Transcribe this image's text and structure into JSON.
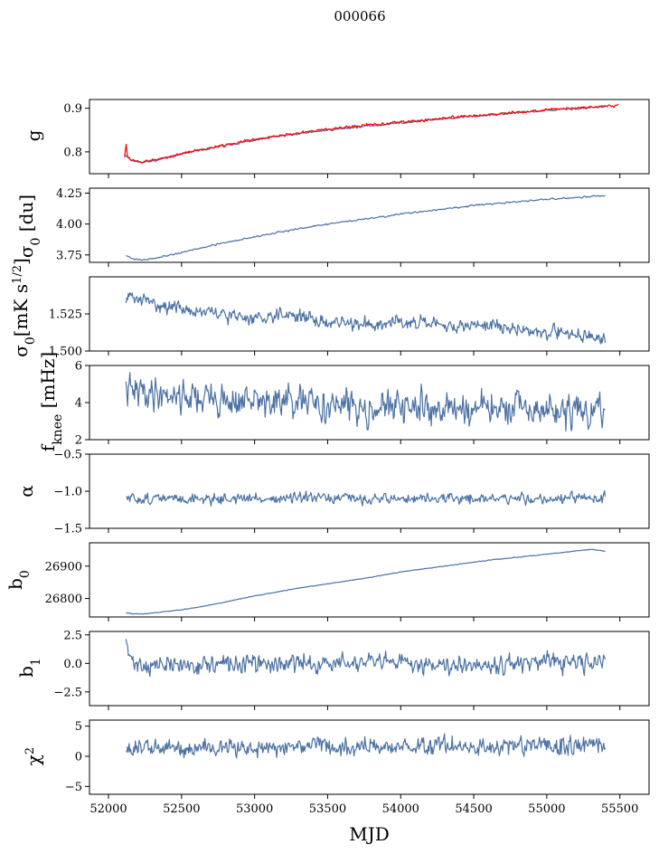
{
  "figure": {
    "title": "000066"
  },
  "colors": {
    "series": "#4c72a4",
    "gain_overlay": "#ff0000",
    "axes": "#000000"
  },
  "chart_data": [
    {
      "type": "line",
      "ylabel": "g",
      "ylim": [
        0.75,
        0.92
      ],
      "yticks": [
        0.8,
        0.9
      ],
      "ytick_labels": [
        "0.8",
        "0.9"
      ],
      "xlim": [
        51870,
        55700
      ],
      "series": [
        {
          "color": "#4c72a4",
          "noise": 0.0015,
          "seed": 11,
          "x": [
            52110,
            52160,
            52230,
            52300,
            52500,
            52800,
            53100,
            53500,
            54000,
            54500,
            55000,
            55400
          ],
          "y": [
            0.795,
            0.78,
            0.777,
            0.779,
            0.795,
            0.815,
            0.833,
            0.85,
            0.867,
            0.882,
            0.895,
            0.904
          ]
        },
        {
          "color": "#ff0000",
          "noise": 0.002,
          "seed": 12,
          "x": [
            52110,
            52120,
            52130,
            52160,
            52230,
            52300,
            52500,
            52800,
            53100,
            53500,
            54000,
            54500,
            55000,
            55400,
            55490
          ],
          "y": [
            0.79,
            0.82,
            0.79,
            0.78,
            0.777,
            0.78,
            0.796,
            0.816,
            0.834,
            0.852,
            0.868,
            0.883,
            0.896,
            0.905,
            0.905
          ]
        }
      ]
    },
    {
      "type": "line",
      "ylabel": "σ0 [du]",
      "ylim": [
        3.69,
        4.29
      ],
      "yticks": [
        3.75,
        4.0,
        4.25
      ],
      "ytick_labels": [
        "3.75",
        "4.00",
        "4.25"
      ],
      "xlim": [
        51870,
        55700
      ],
      "series": [
        {
          "color": "#4c72a4",
          "noise": 0.004,
          "seed": 21,
          "x": [
            52120,
            52160,
            52230,
            52300,
            52500,
            52800,
            53100,
            53500,
            54000,
            54500,
            55000,
            55400
          ],
          "y": [
            3.75,
            3.72,
            3.71,
            3.72,
            3.77,
            3.85,
            3.92,
            4.0,
            4.08,
            4.15,
            4.2,
            4.23
          ]
        }
      ]
    },
    {
      "type": "line",
      "ylabel": "σ0 [mK s^1/2]",
      "ylim": [
        1.5,
        1.55
      ],
      "yticks": [
        1.5,
        1.525
      ],
      "ytick_labels": [
        "1.500",
        "1.525"
      ],
      "xlim": [
        51870,
        55700
      ],
      "series": [
        {
          "color": "#4c72a4",
          "noise": 0.0028,
          "seed": 31,
          "x": [
            52120,
            52200,
            52400,
            52600,
            52800,
            53000,
            53200,
            53500,
            53800,
            54000,
            54300,
            54600,
            54900,
            55200,
            55400
          ],
          "y": [
            1.537,
            1.535,
            1.53,
            1.527,
            1.524,
            1.522,
            1.526,
            1.519,
            1.518,
            1.521,
            1.516,
            1.518,
            1.513,
            1.512,
            1.507
          ]
        }
      ]
    },
    {
      "type": "line",
      "ylabel": "f_knee [mHz]",
      "ylim": [
        2,
        6
      ],
      "yticks": [
        2,
        4,
        6
      ],
      "ytick_labels": [
        "2",
        "4",
        "6"
      ],
      "xlim": [
        51870,
        55700
      ],
      "series": [
        {
          "color": "#4c72a4",
          "noise": 0.55,
          "seed": 41,
          "x": [
            52120,
            52400,
            52800,
            53200,
            53600,
            54000,
            54400,
            54800,
            55200,
            55400
          ],
          "y": [
            4.6,
            4.5,
            4.1,
            4.0,
            3.8,
            3.7,
            3.7,
            3.6,
            3.5,
            3.4
          ]
        }
      ]
    },
    {
      "type": "line",
      "ylabel": "α",
      "ylim": [
        -1.5,
        -0.5
      ],
      "yticks": [
        -1.5,
        -1.0,
        -0.5
      ],
      "ytick_labels": [
        "−1.5",
        "−1.0",
        "−0.5"
      ],
      "xlim": [
        51870,
        55700
      ],
      "series": [
        {
          "color": "#4c72a4",
          "noise": 0.045,
          "seed": 51,
          "x": [
            52120,
            52800,
            53500,
            54200,
            54900,
            55400
          ],
          "y": [
            -1.1,
            -1.1,
            -1.1,
            -1.1,
            -1.1,
            -1.1
          ]
        }
      ]
    },
    {
      "type": "line",
      "ylabel": "b0",
      "ylim": [
        26743,
        26972
      ],
      "yticks": [
        26800,
        26900
      ],
      "ytick_labels": [
        "26800",
        "26900"
      ],
      "xlim": [
        51870,
        55700
      ],
      "series": [
        {
          "color": "#4c72a4",
          "noise": 0.6,
          "seed": 61,
          "x": [
            52120,
            52160,
            52230,
            52300,
            52500,
            52700,
            53000,
            53300,
            53600,
            53800,
            54000,
            54300,
            54600,
            54900,
            55100,
            55300,
            55400
          ],
          "y": [
            26756,
            26753,
            26752,
            26755,
            26765,
            26780,
            26808,
            26832,
            26852,
            26866,
            26882,
            26900,
            26918,
            26932,
            26942,
            26952,
            26946
          ]
        }
      ]
    },
    {
      "type": "line",
      "ylabel": "b1",
      "ylim": [
        -3.7,
        2.8
      ],
      "yticks": [
        -2.5,
        0.0,
        2.5
      ],
      "ytick_labels": [
        "−2.5",
        "0.0",
        "2.5"
      ],
      "xlim": [
        51870,
        55700
      ],
      "series": [
        {
          "color": "#4c72a4",
          "noise": 0.5,
          "seed": 71,
          "x": [
            52120,
            52130,
            52160,
            52250,
            52800,
            53500,
            54200,
            54900,
            55400
          ],
          "y": [
            2.2,
            1.0,
            0.2,
            -0.2,
            -0.1,
            0.0,
            0.0,
            0.0,
            0.0
          ]
        }
      ]
    },
    {
      "type": "line",
      "ylabel": "χ²",
      "ylim": [
        -6.3,
        6.0
      ],
      "yticks": [
        -5,
        0,
        5
      ],
      "ytick_labels": [
        "−5",
        "0",
        "5"
      ],
      "xlim": [
        51870,
        55700
      ],
      "xlabel": "MJD",
      "xticks": [
        52000,
        52500,
        53000,
        53500,
        54000,
        54500,
        55000,
        55500
      ],
      "xtick_labels": [
        "52000",
        "52500",
        "53000",
        "53500",
        "54000",
        "54500",
        "55000",
        "55500"
      ],
      "series": [
        {
          "color": "#4c72a4",
          "noise": 0.95,
          "seed": 81,
          "x": [
            52120,
            52800,
            53500,
            54200,
            54900,
            55400
          ],
          "y": [
            1.3,
            1.4,
            1.6,
            1.7,
            1.6,
            1.8
          ]
        }
      ]
    }
  ]
}
